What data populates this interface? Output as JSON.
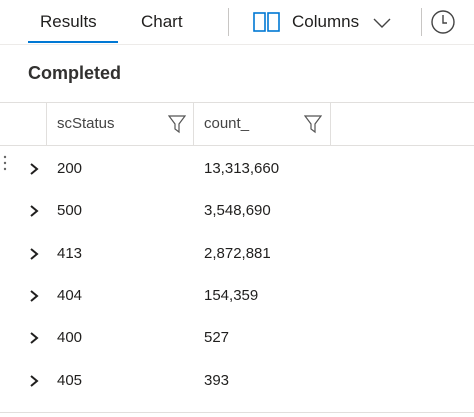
{
  "tabs": [
    "Results",
    "Chart"
  ],
  "toolbar": {
    "columns": "Columns"
  },
  "status": "Completed",
  "table": {
    "headers": [
      "scStatus",
      "count_"
    ],
    "rows": [
      [
        "200",
        "13,313,660"
      ],
      [
        "500",
        "3,548,690"
      ],
      [
        "413",
        "2,872,881"
      ],
      [
        "404",
        "154,359"
      ],
      [
        "400",
        "527"
      ],
      [
        "405",
        "393"
      ]
    ]
  }
}
